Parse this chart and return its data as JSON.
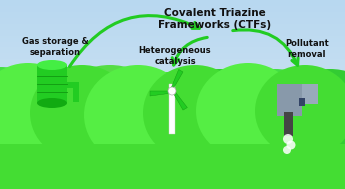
{
  "title": "Covalent Triazine\nFrameworks (CTFs)",
  "label_gas": "Gas storage &\nseparation",
  "label_catalysis": "Heterogeneous\ncatalysis",
  "label_pollutant": "Pollutant\nremoval",
  "bg_color": "#c8e0f0",
  "arrow_color": "#22cc22",
  "text_color": "#111111",
  "title_fontsize": 7.5,
  "label_fontsize": 6.0,
  "hill_colors": [
    "#33cc33",
    "#44dd44",
    "#22bb22",
    "#55dd33",
    "#33bb22"
  ],
  "green_fill": "#33cc33",
  "tank_green": "#22cc22",
  "factory_gray": "#8899aa",
  "factory_gray2": "#aabbcc",
  "smoke_dark": "#222222"
}
